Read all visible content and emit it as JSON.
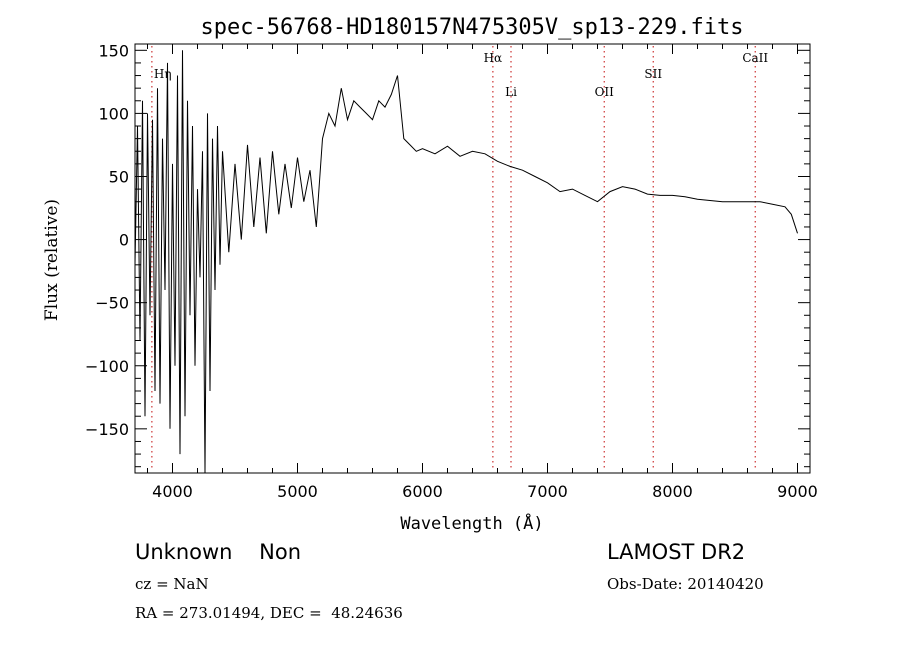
{
  "chart_data": {
    "type": "line",
    "title": "spec-56768-HD180157N475305V_sp13-229.fits",
    "xlabel": "Wavelength (Å)",
    "ylabel": "Flux (relative)",
    "xlim": [
      3700,
      9100
    ],
    "ylim": [
      -185,
      155
    ],
    "x_ticks": [
      4000,
      5000,
      6000,
      7000,
      8000,
      9000
    ],
    "y_ticks": [
      -150,
      -100,
      -50,
      0,
      50,
      100,
      150
    ],
    "x_tick_labels": [
      "4000",
      "5000",
      "6000",
      "7000",
      "8000",
      "9000"
    ],
    "y_tick_labels": [
      "−150",
      "−100",
      "−50",
      "0",
      "50",
      "100",
      "150"
    ],
    "grid": false,
    "line_color": "#000000",
    "marker_color": "#cc3333",
    "lines": [
      {
        "label": "Hη",
        "x": 3835
      },
      {
        "label": "Hα",
        "x": 6563
      },
      {
        "label": "Li",
        "x": 6708
      },
      {
        "label": "OII",
        "x": 7454
      },
      {
        "label": "SII",
        "x": 7846
      },
      {
        "label": "CaII",
        "x": 8662
      }
    ],
    "series": [
      {
        "x": [
          3700,
          3720,
          3740,
          3760,
          3780,
          3800,
          3820,
          3840,
          3860,
          3880,
          3900,
          3920,
          3940,
          3960,
          3980,
          4000,
          4020,
          4040,
          4060,
          4080,
          4100,
          4120,
          4140,
          4160,
          4180,
          4200,
          4220,
          4240,
          4260,
          4280,
          4300,
          4320,
          4340,
          4360,
          4380,
          4400,
          4450,
          4500,
          4550,
          4600,
          4650,
          4700,
          4750,
          4800,
          4850,
          4900,
          4950,
          5000,
          5050,
          5100,
          5150,
          5200,
          5250,
          5300,
          5350,
          5400,
          5450,
          5500,
          5550,
          5600,
          5650,
          5700,
          5750,
          5800,
          5850,
          5900,
          5950,
          6000,
          6100,
          6200,
          6300,
          6400,
          6500,
          6600,
          6700,
          6800,
          6900,
          7000,
          7100,
          7200,
          7300,
          7400,
          7500,
          7600,
          7700,
          7800,
          7900,
          8000,
          8100,
          8200,
          8300,
          8400,
          8500,
          8600,
          8700,
          8800,
          8900,
          8950,
          9000
        ],
        "y": [
          -20,
          90,
          -80,
          110,
          -140,
          100,
          -60,
          95,
          -120,
          120,
          -130,
          80,
          -40,
          140,
          -150,
          60,
          -100,
          130,
          -170,
          150,
          -140,
          110,
          -60,
          90,
          -100,
          40,
          -30,
          70,
          -185,
          100,
          -120,
          80,
          -40,
          90,
          -20,
          70,
          -10,
          60,
          0,
          75,
          10,
          65,
          5,
          70,
          20,
          60,
          25,
          65,
          30,
          55,
          10,
          80,
          100,
          90,
          120,
          95,
          110,
          105,
          100,
          95,
          110,
          105,
          115,
          130,
          80,
          75,
          70,
          72,
          68,
          74,
          66,
          70,
          68,
          62,
          58,
          55,
          50,
          45,
          38,
          40,
          35,
          30,
          38,
          42,
          40,
          36,
          35,
          35,
          34,
          32,
          31,
          30,
          30,
          30,
          30,
          28,
          26,
          20,
          5
        ]
      }
    ],
    "footer": {
      "left_big": "Unknown    Non",
      "right_big": "LAMOST DR2",
      "cz": "cz = NaN",
      "obs_date": "Obs-Date: 20140420",
      "radec": "RA = 273.01494, DEC =  48.24636"
    }
  }
}
